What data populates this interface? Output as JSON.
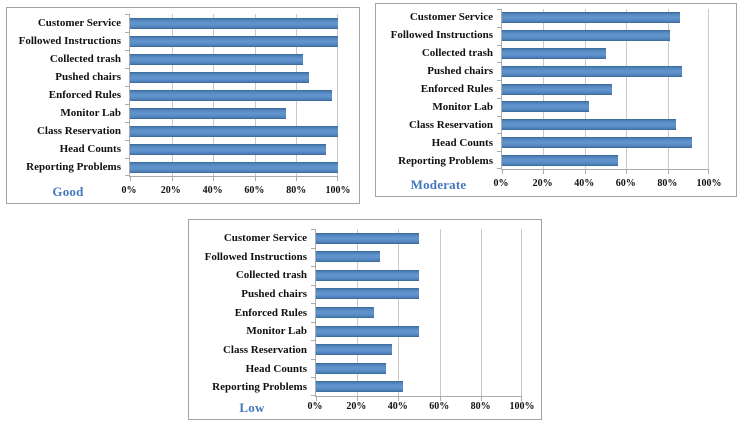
{
  "colors": {
    "bar_fill": "#4F81BD",
    "bar_edge_dark": "#38648F",
    "title_blue": "#4478BE",
    "gridline": "#C9C9C9",
    "axis_line": "#ABABAB",
    "chart_border": "#A3A3A3",
    "label_text": "#111111",
    "background": "#FFFFFF"
  },
  "chart_data": [
    {
      "type": "bar",
      "orientation": "horizontal",
      "title": "Good",
      "categories": [
        "Customer Service",
        "Followed Instructions",
        "Collected trash",
        "Pushed chairs",
        "Enforced Rules",
        "Monitor Lab",
        "Class Reservation",
        "Head Counts",
        "Reporting Problems"
      ],
      "values": [
        100,
        100,
        83,
        86,
        97,
        75,
        100,
        94,
        100
      ],
      "values_unit": "%",
      "xlim": [
        0,
        100
      ],
      "x_ticks": [
        "0%",
        "20%",
        "40%",
        "60%",
        "80%",
        "100%"
      ],
      "grid": true,
      "legend_position": "none"
    },
    {
      "type": "bar",
      "orientation": "horizontal",
      "title": "Moderate",
      "categories": [
        "Customer Service",
        "Followed Instructions",
        "Collected trash",
        "Pushed chairs",
        "Enforced Rules",
        "Monitor Lab",
        "Class Reservation",
        "Head Counts",
        "Reporting Problems"
      ],
      "values": [
        86,
        81,
        50,
        87,
        53,
        42,
        84,
        92,
        56
      ],
      "values_unit": "%",
      "xlim": [
        0,
        100
      ],
      "x_ticks": [
        "0%",
        "20%",
        "40%",
        "60%",
        "80%",
        "100%"
      ],
      "grid": true,
      "legend_position": "none"
    },
    {
      "type": "bar",
      "orientation": "horizontal",
      "title": "Low",
      "categories": [
        "Customer Service",
        "Followed Instructions",
        "Collected trash",
        "Pushed chairs",
        "Enforced Rules",
        "Monitor Lab",
        "Class Reservation",
        "Head Counts",
        "Reporting Problems"
      ],
      "values": [
        50,
        31,
        50,
        50,
        28,
        50,
        37,
        34,
        42
      ],
      "values_unit": "%",
      "xlim": [
        0,
        100
      ],
      "x_ticks": [
        "0%",
        "20%",
        "40%",
        "60%",
        "80%",
        "100%"
      ],
      "grid": true,
      "legend_position": "none"
    }
  ]
}
